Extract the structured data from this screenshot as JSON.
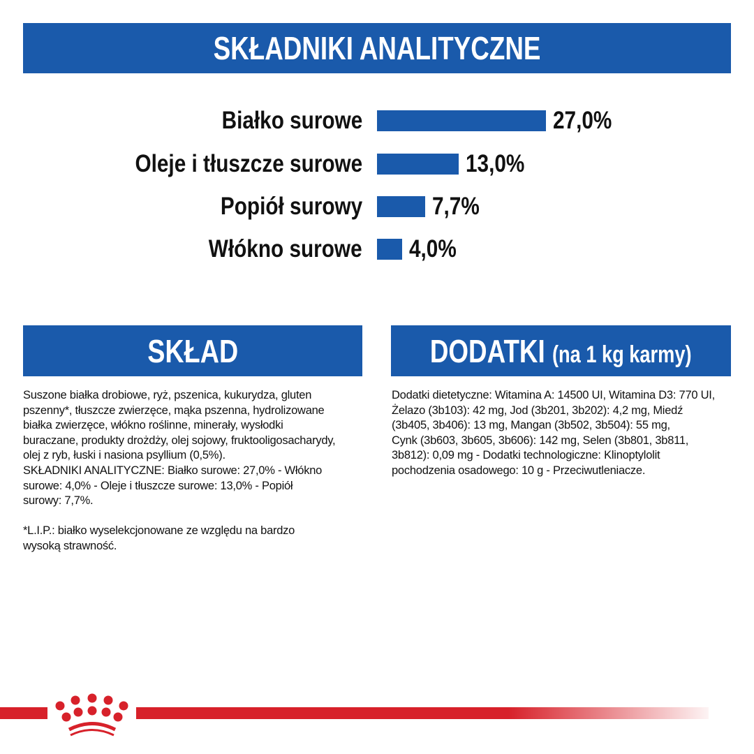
{
  "header": {
    "title": "SKŁADNIKI ANALITYCZNE"
  },
  "chart_data": {
    "type": "bar",
    "orientation": "horizontal",
    "categories": [
      "Białko surowe",
      "Oleje i tłuszcze surowe",
      "Popiół surowy",
      "Włókno surowe"
    ],
    "values": [
      27.0,
      13.0,
      7.7,
      4.0
    ],
    "value_labels": [
      "27,0%",
      "13,0%",
      "7,7%",
      "4,0%"
    ],
    "bar_color": "#1a5aab",
    "grid": false
  },
  "sklad": {
    "title": "SKŁAD",
    "lines": [
      "Suszone białka drobiowe, ryż, pszenica, kukurydza, gluten",
      "pszenny*, tłuszcze zwierzęce, mąka pszenna, hydrolizowane",
      "białka zwierzęce, włókno roślinne, minerały, wysłodki",
      "buraczane, produkty drożdży, olej sojowy, fruktooligosacharydy,",
      "olej z ryb, łuski i nasiona psyllium (0,5%).",
      "SKŁADNIKI ANALITYCZNE: Białko surowe: 27,0% - Włókno",
      "surowe: 4,0% - Oleje i tłuszcze surowe: 13,0% - Popiół",
      "surowy: 7,7%.",
      "",
      "*L.I.P.: białko wyselekcjonowane ze względu na bardzo",
      "wysoką strawność."
    ]
  },
  "dodatki": {
    "title": "DODATKI",
    "subtitle": "(na 1 kg karmy)",
    "lines": [
      "Dodatki dietetyczne: Witamina A: 14500 UI, Witamina D3: 770 UI,",
      "Żelazo (3b103): 42 mg, Jod (3b201, 3b202): 4,2 mg, Miedź",
      "(3b405, 3b406): 13 mg, Mangan (3b502, 3b504): 55 mg,",
      "Cynk (3b603, 3b605, 3b606): 142 mg, Selen (3b801, 3b811,",
      "3b812): 0,09 mg - Dodatki technologiczne: Klinoptylolit",
      "pochodzenia osadowego: 10 g - Przeciwutleniacze."
    ]
  },
  "footer": {
    "logo": "royal-canin-crown-icon",
    "accent_color": "#d7212a"
  }
}
